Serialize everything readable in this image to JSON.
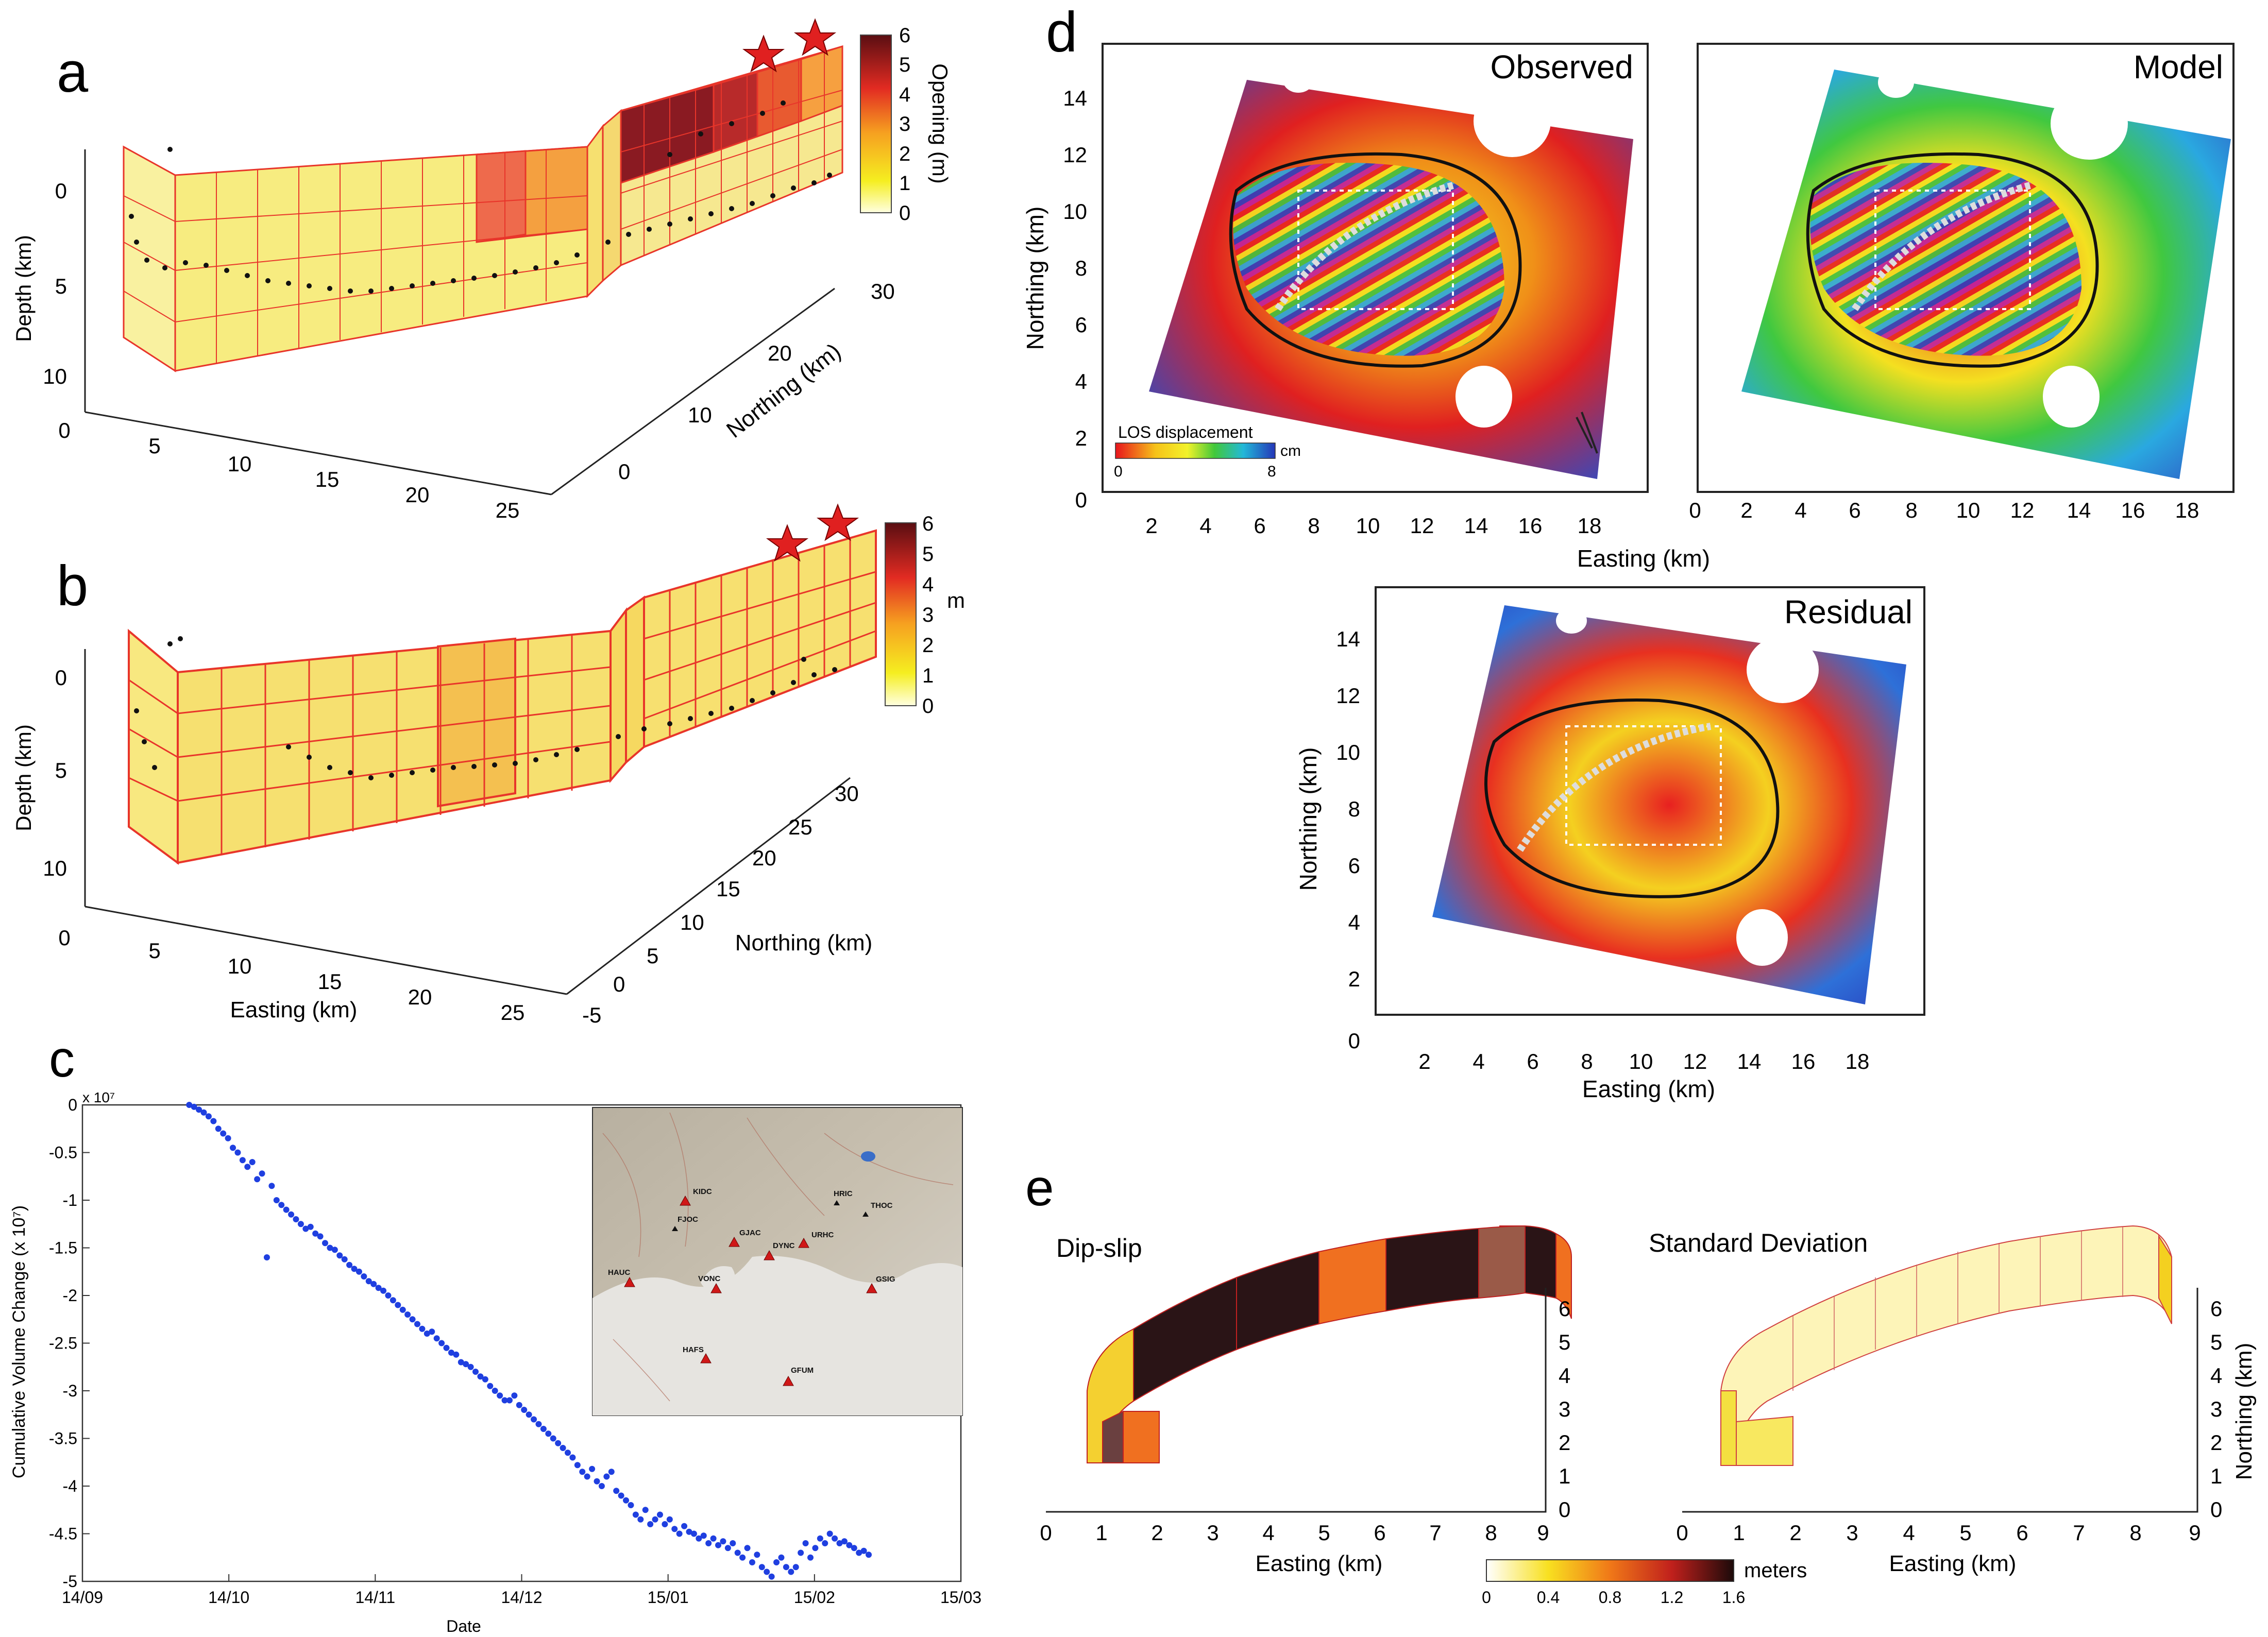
{
  "figure": {
    "panel_a": {
      "letter": "a",
      "depth_label": "Depth (km)",
      "northing_label": "Northing (km)",
      "colorbar_label": "Opening (m)",
      "colorbar_ticks": [
        "6",
        "5",
        "4",
        "3",
        "2",
        "1",
        "0"
      ],
      "depth_ticks": [
        "0",
        "5",
        "10"
      ],
      "easting_ticks": [
        "0",
        "5",
        "10",
        "15",
        "20",
        "25"
      ],
      "northing_ticks": [
        "0",
        "10",
        "20",
        "30"
      ]
    },
    "panel_b": {
      "letter": "b",
      "depth_label": "Depth (km)",
      "northing_label": "Northing (km)",
      "easting_label": "Easting (km)",
      "colorbar_unit": "m",
      "colorbar_ticks": [
        "6",
        "5",
        "4",
        "3",
        "2",
        "1",
        "0"
      ],
      "depth_ticks": [
        "0",
        "5",
        "10"
      ],
      "easting_ticks": [
        "0",
        "5",
        "10",
        "15",
        "20",
        "25"
      ],
      "northing_ticks": [
        "-5",
        "0",
        "5",
        "10",
        "15",
        "20",
        "25",
        "30"
      ]
    },
    "panel_c": {
      "letter": "c",
      "scale_note": "x 10⁷",
      "ylabel": "Cumulative Volume Change  (x 10⁷)",
      "xlabel": "Date",
      "inset_stations": [
        "KIDC",
        "FJOC",
        "GJAC",
        "DYNC",
        "URHC",
        "HRIC",
        "THOC",
        "HAUC",
        "VONC",
        "GSIG",
        "HAFS",
        "GFUM"
      ]
    },
    "panel_d": {
      "letter": "d",
      "observed_title": "Observed",
      "model_title": "Model",
      "residual_title": "Residual",
      "northing_label": "Northing (km)",
      "easting_label": "Easting (km)",
      "los_label": "LOS displacement",
      "los_min": "0",
      "los_max": "8",
      "los_unit": "cm",
      "y_ticks": [
        "0",
        "2",
        "4",
        "6",
        "8",
        "10",
        "12",
        "14"
      ],
      "x_ticks": [
        "2",
        "4",
        "6",
        "8",
        "10",
        "12",
        "14",
        "16",
        "18"
      ]
    },
    "panel_e": {
      "letter": "e",
      "left_title": "Dip-slip",
      "right_title": "Standard Deviation",
      "xlabel": "Easting (km)",
      "northing_label": "Northing (km)",
      "x_ticks": [
        "0",
        "1",
        "2",
        "3",
        "4",
        "5",
        "6",
        "7",
        "8",
        "9"
      ],
      "y_ticks": [
        "0",
        "1",
        "2",
        "3",
        "4",
        "5",
        "6"
      ],
      "colorbar_ticks": [
        "0",
        "0.4",
        "0.8",
        "1.2",
        "1.6"
      ],
      "colorbar_unit": "meters"
    }
  },
  "chart_data": {
    "type": "scatter",
    "title": "Cumulative Volume Change",
    "xlabel": "Date",
    "ylabel": "Cumulative Volume Change  (x 10⁷)",
    "x_ticks": [
      "14/09",
      "14/10",
      "14/11",
      "14/12",
      "15/01",
      "15/02",
      "15/03"
    ],
    "y_ticks": [
      "0",
      "-0.5",
      "-1",
      "-1.5",
      "-2",
      "-2.5",
      "-3",
      "-3.5",
      "-4",
      "-4.5",
      "-5"
    ],
    "xlim_days": [
      0,
      181
    ],
    "ylim": [
      -5,
      0
    ],
    "color": "#1f3fe0",
    "series": [
      {
        "name": "Cumulative volume change",
        "x_days": [
          22,
          23,
          24,
          25,
          26,
          27,
          28,
          29,
          30,
          31,
          32,
          33,
          34,
          35,
          36,
          37,
          38,
          39,
          40,
          41,
          42,
          43,
          44,
          45,
          46,
          47,
          48,
          49,
          50,
          51,
          52,
          53,
          54,
          55,
          56,
          57,
          58,
          59,
          60,
          61,
          62,
          63,
          64,
          65,
          66,
          67,
          68,
          69,
          70,
          71,
          72,
          73,
          74,
          75,
          76,
          77,
          78,
          79,
          80,
          81,
          82,
          83,
          84,
          85,
          86,
          87,
          88,
          89,
          90,
          91,
          92,
          93,
          94,
          95,
          96,
          97,
          98,
          99,
          100,
          101,
          102,
          103,
          104,
          105,
          106,
          107,
          108,
          109,
          110,
          111,
          112,
          113,
          114,
          115,
          116,
          117,
          118,
          119,
          120,
          121,
          122,
          123,
          124,
          125,
          126,
          127,
          128,
          129,
          130,
          131,
          132,
          133,
          134,
          135,
          136,
          137,
          138,
          139,
          140,
          141,
          142,
          143,
          144,
          145,
          146,
          147,
          148,
          149,
          150,
          151,
          152,
          153,
          154,
          155,
          156,
          157,
          158,
          159,
          160,
          161,
          162
        ],
        "y": [
          0.0,
          -0.02,
          -0.05,
          -0.08,
          -0.12,
          -0.17,
          -0.25,
          -0.3,
          -0.35,
          -0.45,
          -0.5,
          -0.58,
          -0.65,
          -0.6,
          -0.78,
          -0.72,
          -1.6,
          -0.85,
          -1.0,
          -1.05,
          -1.1,
          -1.15,
          -1.2,
          -1.25,
          -1.3,
          -1.28,
          -1.35,
          -1.38,
          -1.45,
          -1.5,
          -1.52,
          -1.58,
          -1.62,
          -1.68,
          -1.72,
          -1.75,
          -1.8,
          -1.85,
          -1.88,
          -1.92,
          -1.95,
          -2.0,
          -2.05,
          -2.1,
          -2.15,
          -2.2,
          -2.25,
          -2.3,
          -2.35,
          -2.4,
          -2.38,
          -2.45,
          -2.5,
          -2.55,
          -2.6,
          -2.62,
          -2.7,
          -2.72,
          -2.75,
          -2.8,
          -2.85,
          -2.88,
          -2.95,
          -3.0,
          -3.05,
          -3.1,
          -3.1,
          -3.05,
          -3.15,
          -3.2,
          -3.25,
          -3.3,
          -3.35,
          -3.4,
          -3.45,
          -3.5,
          -3.55,
          -3.6,
          -3.65,
          -3.7,
          -3.78,
          -3.85,
          -3.9,
          -3.82,
          -3.95,
          -4.0,
          -3.9,
          -3.85,
          -4.05,
          -4.1,
          -4.15,
          -4.2,
          -4.3,
          -4.35,
          -4.25,
          -4.4,
          -4.35,
          -4.3,
          -4.4,
          -4.35,
          -4.45,
          -4.5,
          -4.42,
          -4.48,
          -4.5,
          -4.55,
          -4.52,
          -4.6,
          -4.55,
          -4.62,
          -4.58,
          -4.65,
          -4.6,
          -4.7,
          -4.75,
          -4.65,
          -4.8,
          -4.72,
          -4.85,
          -4.9,
          -4.95,
          -4.8,
          -4.75,
          -4.85,
          -4.9,
          -4.85,
          -4.7,
          -4.6,
          -4.75,
          -4.65,
          -4.55,
          -4.6,
          -4.5,
          -4.55,
          -4.6,
          -4.58,
          -4.62,
          -4.65,
          -4.7,
          -4.68,
          -4.72
        ]
      }
    ]
  }
}
